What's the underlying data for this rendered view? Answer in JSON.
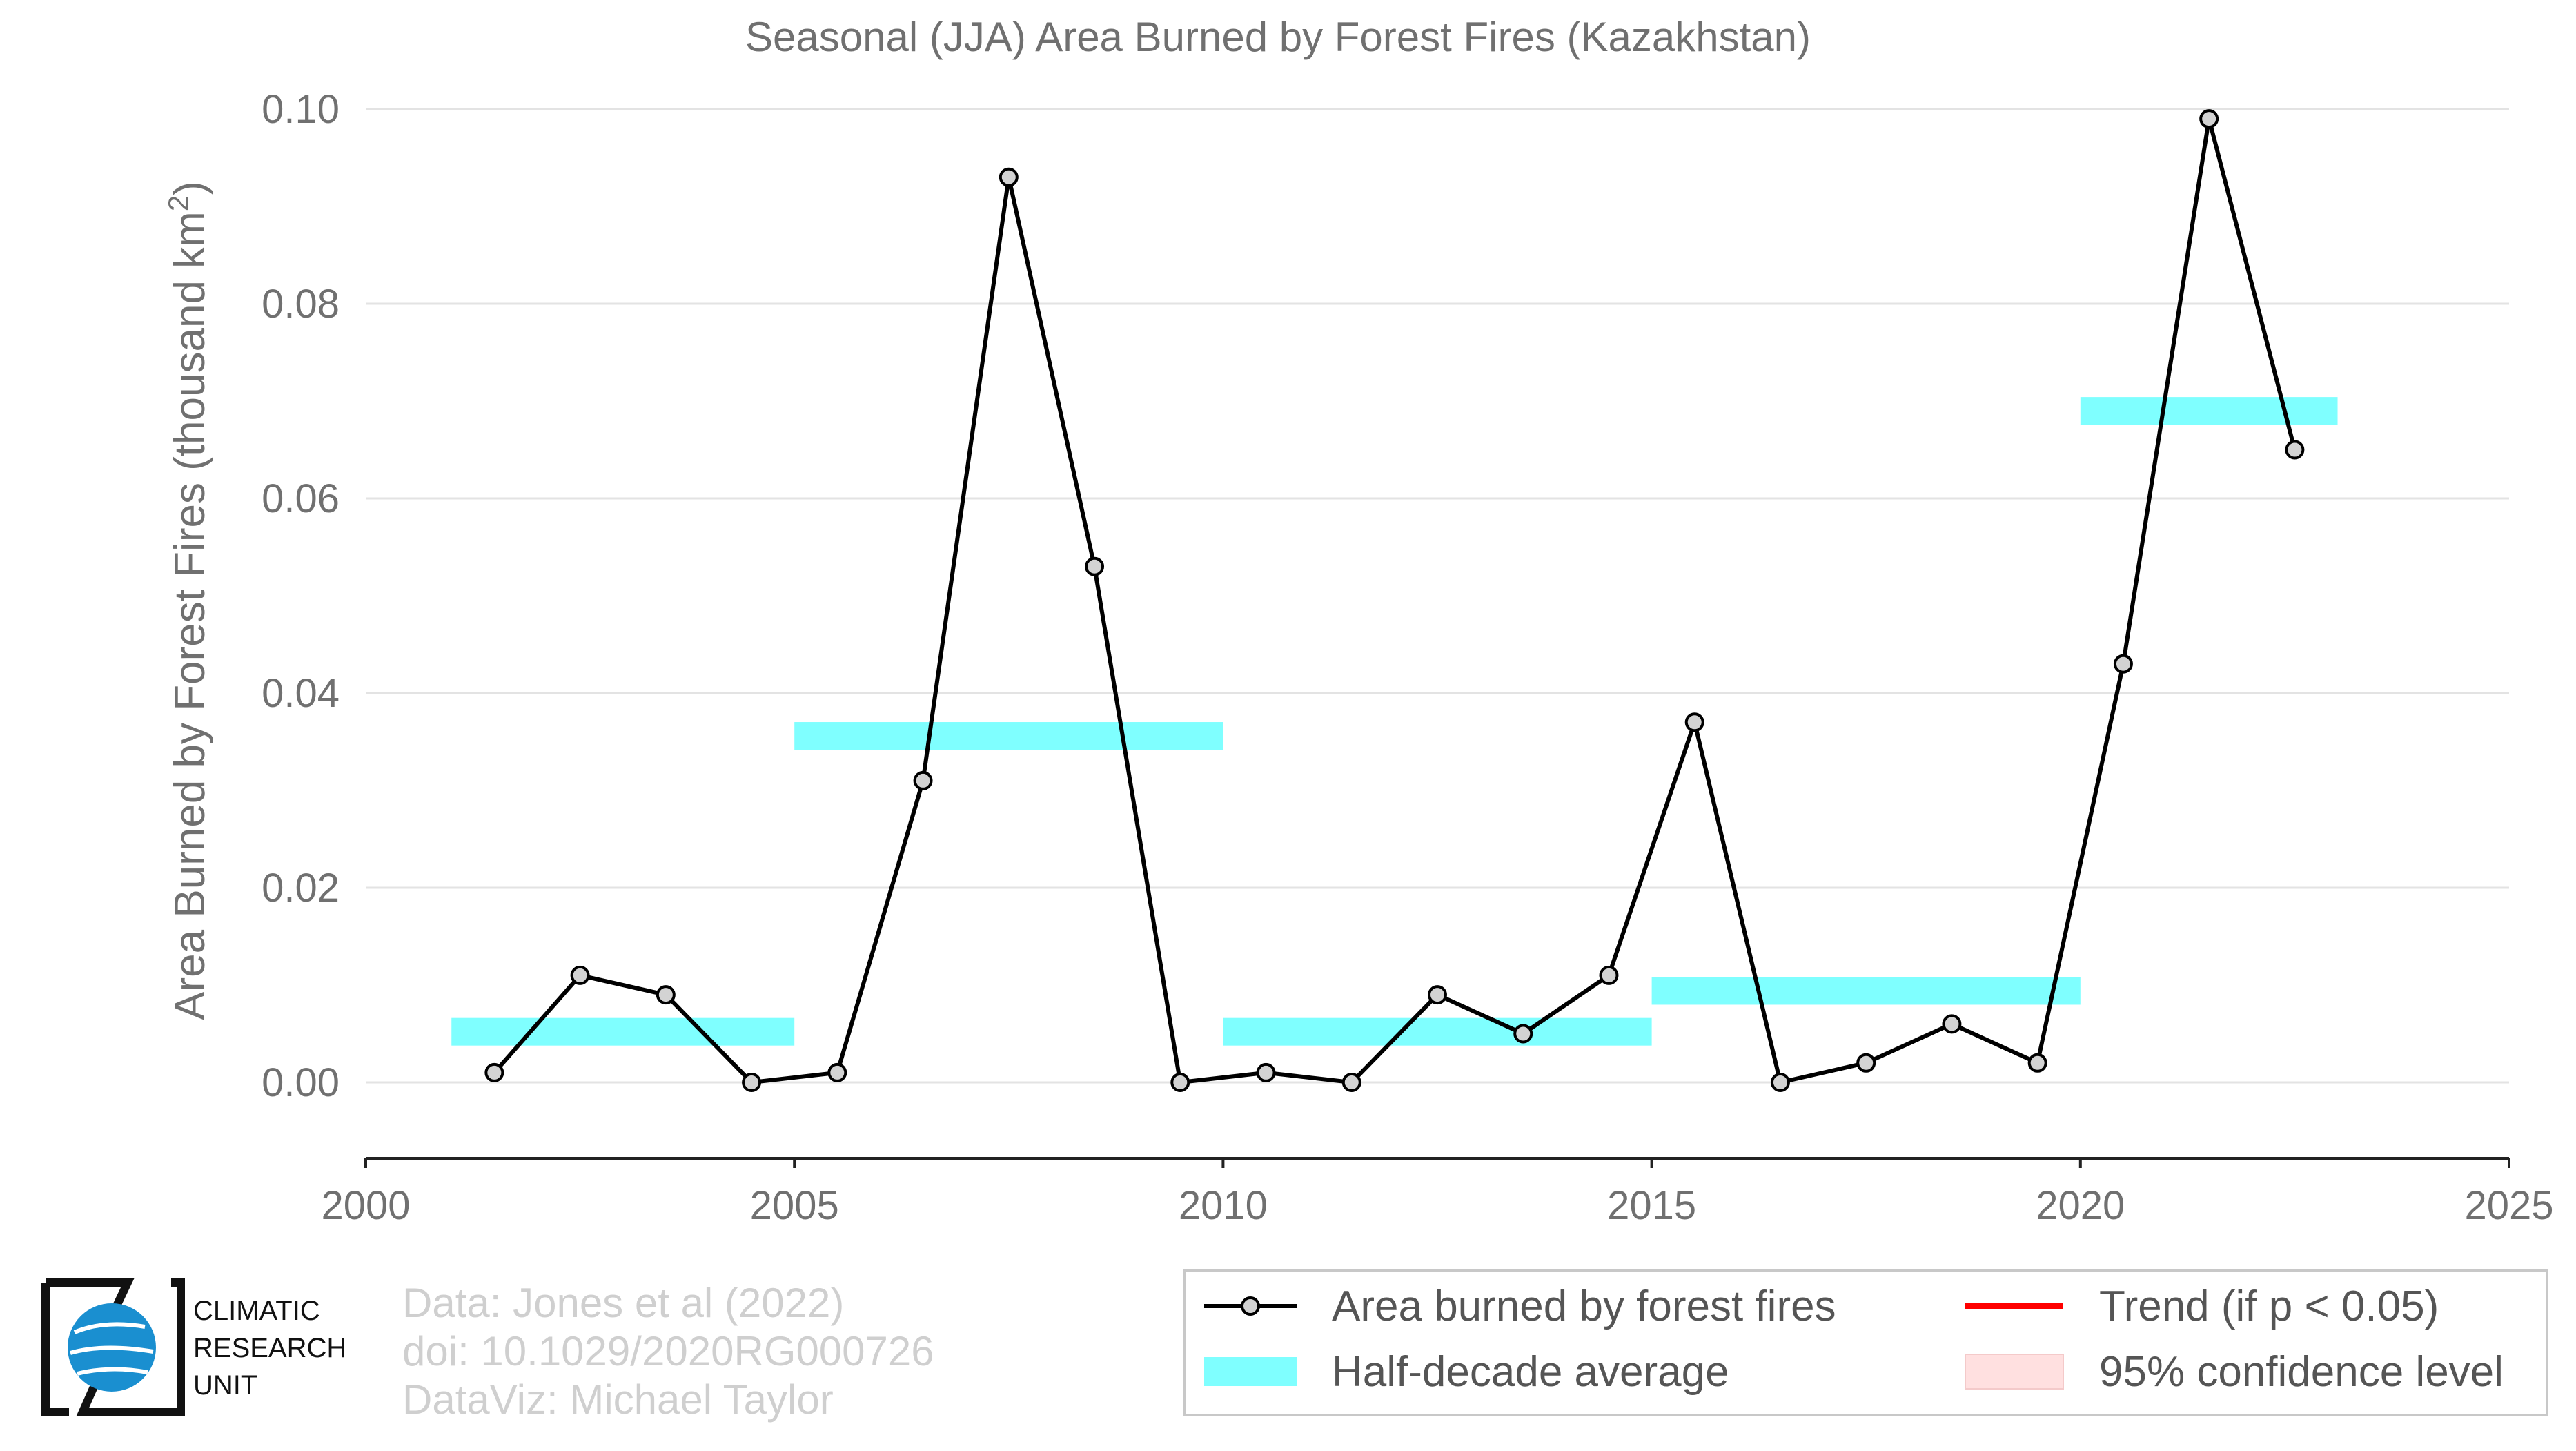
{
  "chart_data": {
    "type": "line",
    "title": "Seasonal (JJA) Area Burned by Forest Fires (Kazakhstan)",
    "xlabel": "",
    "ylabel": "Area Burned by Forest Fires (thousand km²)",
    "ylabel_prefix": "Area Burned by Forest Fires (thousand km",
    "ylabel_sup": "2",
    "ylabel_suffix": ")",
    "xlim": [
      2000,
      2025
    ],
    "ylim": [
      -0.008,
      0.1
    ],
    "xticks": [
      2000,
      2005,
      2010,
      2015,
      2020,
      2025
    ],
    "xtick_labels": [
      "2000",
      "2005",
      "2010",
      "2015",
      "2020",
      "2025"
    ],
    "yticks": [
      0.0,
      0.02,
      0.04,
      0.06,
      0.08,
      0.1
    ],
    "ytick_labels": [
      "0.00",
      "0.02",
      "0.04",
      "0.06",
      "0.08",
      "0.10"
    ],
    "grid": true,
    "series": [
      {
        "name": "Area burned by forest fires",
        "color": "#000000",
        "marker_fill": "#d3d3d3",
        "x": [
          2001.5,
          2002.5,
          2003.5,
          2004.5,
          2005.5,
          2006.5,
          2007.5,
          2008.5,
          2009.5,
          2010.5,
          2011.5,
          2012.5,
          2013.5,
          2014.5,
          2015.5,
          2016.5,
          2017.5,
          2018.5,
          2019.5,
          2020.5,
          2021.5,
          2022.5
        ],
        "y": [
          0.001,
          0.011,
          0.009,
          0.0,
          0.001,
          0.031,
          0.093,
          0.053,
          0.0,
          0.001,
          0.0,
          0.009,
          0.005,
          0.011,
          0.037,
          0.0,
          0.002,
          0.006,
          0.002,
          0.043,
          0.099,
          0.065
        ]
      }
    ],
    "half_decade_average": {
      "name": "Half-decade average",
      "color": "#7fffff",
      "segments": [
        {
          "x0": 2001,
          "x1": 2005,
          "y": 0.0052
        },
        {
          "x0": 2005,
          "x1": 2010,
          "y": 0.0356
        },
        {
          "x0": 2010,
          "x1": 2015,
          "y": 0.0052
        },
        {
          "x0": 2015,
          "x1": 2020,
          "y": 0.0094
        },
        {
          "x0": 2020,
          "x1": 2023,
          "y": 0.069
        }
      ]
    },
    "legend": {
      "position": "bottom-right",
      "entries": [
        {
          "label": "Area burned by forest fires",
          "kind": "line-marker",
          "color": "#000000"
        },
        {
          "label": "Trend (if p < 0.05)",
          "kind": "line",
          "color": "#ff0000"
        },
        {
          "label": "Half-decade average",
          "kind": "band",
          "color": "#7fffff"
        },
        {
          "label": "95% confidence level",
          "kind": "band",
          "color": "#ffe0e0"
        }
      ]
    }
  },
  "credits": {
    "line1": "Data: Jones et al (2022)",
    "line2": "doi: 10.1029/2020RG000726",
    "line3": "DataViz: Michael Taylor"
  },
  "logo": {
    "line1": "CLIMATIC",
    "line2": "RESEARCH",
    "line3": "UNIT",
    "color": "#1a8fd0"
  }
}
